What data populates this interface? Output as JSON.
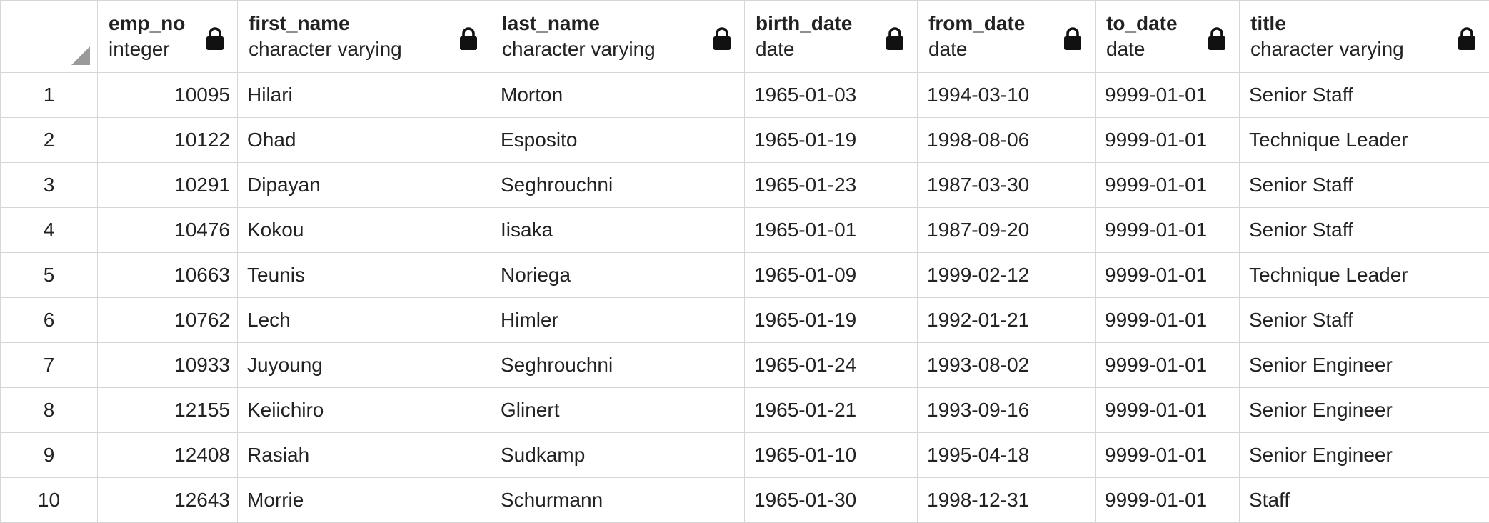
{
  "columns": [
    {
      "name": "emp_no",
      "type": "integer",
      "icon": "lock-icon"
    },
    {
      "name": "first_name",
      "type": "character varying",
      "icon": "lock-icon"
    },
    {
      "name": "last_name",
      "type": "character varying",
      "icon": "lock-icon"
    },
    {
      "name": "birth_date",
      "type": "date",
      "icon": "lock-icon"
    },
    {
      "name": "from_date",
      "type": "date",
      "icon": "lock-icon"
    },
    {
      "name": "to_date",
      "type": "date",
      "icon": "lock-icon"
    },
    {
      "name": "title",
      "type": "character varying",
      "icon": "lock-icon"
    }
  ],
  "rows": [
    {
      "n": "1",
      "emp_no": "10095",
      "first_name": "Hilari",
      "last_name": "Morton",
      "birth_date": "1965-01-03",
      "from_date": "1994-03-10",
      "to_date": "9999-01-01",
      "title": "Senior Staff"
    },
    {
      "n": "2",
      "emp_no": "10122",
      "first_name": "Ohad",
      "last_name": "Esposito",
      "birth_date": "1965-01-19",
      "from_date": "1998-08-06",
      "to_date": "9999-01-01",
      "title": "Technique Leader"
    },
    {
      "n": "3",
      "emp_no": "10291",
      "first_name": "Dipayan",
      "last_name": "Seghrouchni",
      "birth_date": "1965-01-23",
      "from_date": "1987-03-30",
      "to_date": "9999-01-01",
      "title": "Senior Staff"
    },
    {
      "n": "4",
      "emp_no": "10476",
      "first_name": "Kokou",
      "last_name": "Iisaka",
      "birth_date": "1965-01-01",
      "from_date": "1987-09-20",
      "to_date": "9999-01-01",
      "title": "Senior Staff"
    },
    {
      "n": "5",
      "emp_no": "10663",
      "first_name": "Teunis",
      "last_name": "Noriega",
      "birth_date": "1965-01-09",
      "from_date": "1999-02-12",
      "to_date": "9999-01-01",
      "title": "Technique Leader"
    },
    {
      "n": "6",
      "emp_no": "10762",
      "first_name": "Lech",
      "last_name": "Himler",
      "birth_date": "1965-01-19",
      "from_date": "1992-01-21",
      "to_date": "9999-01-01",
      "title": "Senior Staff"
    },
    {
      "n": "7",
      "emp_no": "10933",
      "first_name": "Juyoung",
      "last_name": "Seghrouchni",
      "birth_date": "1965-01-24",
      "from_date": "1993-08-02",
      "to_date": "9999-01-01",
      "title": "Senior Engineer"
    },
    {
      "n": "8",
      "emp_no": "12155",
      "first_name": "Keiichiro",
      "last_name": "Glinert",
      "birth_date": "1965-01-21",
      "from_date": "1993-09-16",
      "to_date": "9999-01-01",
      "title": "Senior Engineer"
    },
    {
      "n": "9",
      "emp_no": "12408",
      "first_name": "Rasiah",
      "last_name": "Sudkamp",
      "birth_date": "1965-01-10",
      "from_date": "1995-04-18",
      "to_date": "9999-01-01",
      "title": "Senior Engineer"
    },
    {
      "n": "10",
      "emp_no": "12643",
      "first_name": "Morrie",
      "last_name": "Schurmann",
      "birth_date": "1965-01-30",
      "from_date": "1998-12-31",
      "to_date": "9999-01-01",
      "title": "Staff"
    }
  ]
}
